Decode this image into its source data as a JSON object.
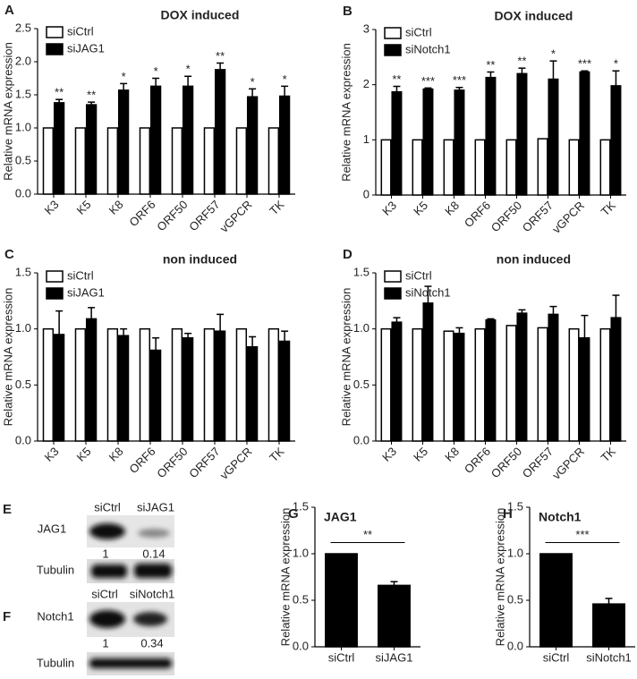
{
  "chart_data": [
    {
      "type": "bar",
      "panel": "A",
      "title": "DOX induced",
      "ylabel": "Relative mRNA expression",
      "categories": [
        "K3",
        "K5",
        "K8",
        "ORF6",
        "ORF50",
        "ORF57",
        "vGPCR",
        "TK"
      ],
      "series": [
        {
          "name": "siCtrl",
          "color": "#ffffff",
          "values": [
            1,
            1,
            1,
            1,
            1,
            1,
            1,
            1
          ]
        },
        {
          "name": "siJAG1",
          "color": "#000000",
          "values": [
            1.38,
            1.35,
            1.57,
            1.63,
            1.63,
            1.88,
            1.47,
            1.48
          ],
          "errors": [
            0.05,
            0.04,
            0.1,
            0.12,
            0.15,
            0.1,
            0.12,
            0.15
          ]
        }
      ],
      "annotations": [
        "**",
        "**",
        "*",
        "*",
        "*",
        "**",
        "*",
        "*"
      ],
      "ylim": [
        0,
        2.5
      ],
      "yticks": [
        {
          "value": 0,
          "label": "0.0"
        },
        {
          "value": 0.5,
          "label": "0.5"
        },
        {
          "value": 1,
          "label": "1.0"
        },
        {
          "value": 1.5,
          "label": "1.5"
        },
        {
          "value": 2,
          "label": "2.0"
        },
        {
          "value": 2.5,
          "label": "2.5"
        }
      ],
      "legend": "upper left"
    },
    {
      "type": "bar",
      "panel": "B",
      "title": "DOX induced",
      "ylabel": "Relative mRNA expression",
      "categories": [
        "K3",
        "K5",
        "K8",
        "ORF6",
        "ORF50",
        "ORF57",
        "vGPCR",
        "TK"
      ],
      "series": [
        {
          "name": "siCtrl",
          "color": "#ffffff",
          "values": [
            1,
            1,
            1,
            1,
            1,
            1.02,
            1,
            1
          ]
        },
        {
          "name": "siNotch1",
          "color": "#000000",
          "values": [
            1.87,
            1.92,
            1.9,
            2.13,
            2.2,
            2.1,
            2.23,
            1.98
          ],
          "errors": [
            0.1,
            0.02,
            0.05,
            0.1,
            0.1,
            0.33,
            0.02,
            0.27
          ]
        }
      ],
      "annotations": [
        "**",
        "***",
        "***",
        "**",
        "**",
        "*",
        "***",
        "*"
      ],
      "ylim": [
        0,
        3
      ],
      "yticks": [
        0,
        1,
        2,
        3
      ],
      "legend": "upper left"
    },
    {
      "type": "bar",
      "panel": "C",
      "title": "non induced",
      "ylabel": "Relative mRNA expression",
      "categories": [
        "K3",
        "K5",
        "K8",
        "ORF6",
        "ORF50",
        "ORF57",
        "vGPCR",
        "TK"
      ],
      "series": [
        {
          "name": "siCtrl",
          "color": "#ffffff",
          "values": [
            1,
            1,
            1,
            1,
            1,
            1,
            1,
            1
          ]
        },
        {
          "name": "siJAG1",
          "color": "#000000",
          "values": [
            0.95,
            1.09,
            0.94,
            0.81,
            0.92,
            0.98,
            0.84,
            0.89
          ],
          "errors": [
            0.21,
            0.1,
            0.06,
            0.11,
            0.04,
            0.15,
            0.09,
            0.09
          ]
        }
      ],
      "ylim": [
        0,
        1.5
      ],
      "yticks": [
        {
          "value": 0,
          "label": "0.0"
        },
        {
          "value": 0.5,
          "label": "0.5"
        },
        {
          "value": 1,
          "label": "1.0"
        },
        {
          "value": 1.5,
          "label": "1.5"
        }
      ],
      "legend": "upper left"
    },
    {
      "type": "bar",
      "panel": "D",
      "title": "non induced",
      "ylabel": "Relative mRNA expression",
      "categories": [
        "K3",
        "K5",
        "K8",
        "ORF6",
        "ORF50",
        "ORF57",
        "vGPCR",
        "TK"
      ],
      "series": [
        {
          "name": "siCtrl",
          "color": "#ffffff",
          "values": [
            1,
            1,
            0.98,
            1,
            1.03,
            1.01,
            1,
            1
          ]
        },
        {
          "name": "siNotch1",
          "color": "#000000",
          "values": [
            1.06,
            1.23,
            0.96,
            1.08,
            1.14,
            1.13,
            0.92,
            1.1
          ],
          "errors": [
            0.04,
            0.15,
            0.05,
            0.01,
            0.03,
            0.07,
            0.2,
            0.2
          ]
        }
      ],
      "ylim": [
        0,
        1.5
      ],
      "yticks": [
        {
          "value": 0,
          "label": "0.0"
        },
        {
          "value": 0.5,
          "label": "0.5"
        },
        {
          "value": 1,
          "label": "1.0"
        },
        {
          "value": 1.5,
          "label": "1.5"
        }
      ],
      "legend": "upper left"
    },
    {
      "type": "bar",
      "panel": "G",
      "title": "JAG1",
      "ylabel": "Relative mRNA expression",
      "categories": [
        "siCtrl",
        "siJAG1"
      ],
      "values": [
        1,
        0.66
      ],
      "errors": [
        0,
        0.04
      ],
      "color": "#000000",
      "annotation": "**",
      "ylim": [
        0,
        1.5
      ],
      "yticks": [
        {
          "value": 0,
          "label": "0.0"
        },
        {
          "value": 0.5,
          "label": "0.5"
        },
        {
          "value": 1,
          "label": "1.0"
        },
        {
          "value": 1.5,
          "label": "1.5"
        }
      ]
    },
    {
      "type": "bar",
      "panel": "H",
      "title": "Notch1",
      "ylabel": "Relative mRNA expression",
      "categories": [
        "siCtrl",
        "siNotch1"
      ],
      "values": [
        1,
        0.46
      ],
      "errors": [
        0,
        0.06
      ],
      "color": "#000000",
      "annotation": "***",
      "ylim": [
        0,
        1.5
      ],
      "yticks": [
        {
          "value": 0,
          "label": "0.0"
        },
        {
          "value": 0.5,
          "label": "0.5"
        },
        {
          "value": 1,
          "label": "1.0"
        },
        {
          "value": 1.5,
          "label": "1.5"
        }
      ]
    }
  ],
  "blots": [
    {
      "panel": "E",
      "lanes": [
        "siCtrl",
        "siJAG1"
      ],
      "target": "JAG1",
      "quantification": [
        1,
        0.14
      ],
      "loading": "Tubulin"
    },
    {
      "panel": "F",
      "lanes": [
        "siCtrl",
        "siNotch1"
      ],
      "target": "Notch1",
      "quantification": [
        1,
        0.34
      ],
      "loading": "Tubulin"
    }
  ]
}
